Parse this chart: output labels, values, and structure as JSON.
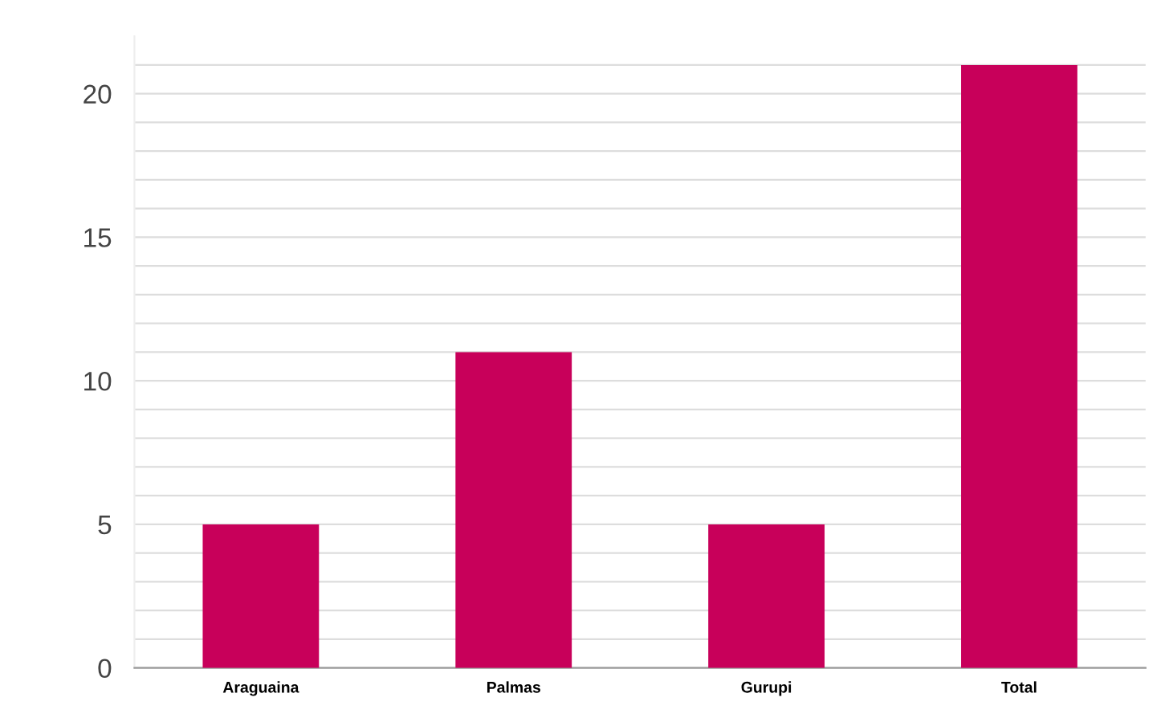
{
  "chart_data": {
    "type": "bar",
    "categories": [
      "Araguaina",
      "Palmas",
      "Gurupi",
      "Total"
    ],
    "values": [
      5,
      11,
      5,
      21
    ],
    "color": "#c8005a",
    "ylim": [
      0,
      22
    ],
    "yticks": [
      0,
      {
        "value": 1,
        "label": null
      },
      {
        "value": 2,
        "label": null
      },
      {
        "value": 3,
        "label": null
      },
      {
        "value": 4,
        "label": null
      },
      5,
      {
        "value": 6,
        "label": null
      },
      {
        "value": 7,
        "label": null
      },
      {
        "value": 8,
        "label": null
      },
      {
        "value": 9,
        "label": null
      },
      10,
      {
        "value": 11,
        "label": null
      },
      {
        "value": 12,
        "label": null
      },
      {
        "value": 13,
        "label": null
      },
      {
        "value": 14,
        "label": null
      },
      15,
      {
        "value": 16,
        "label": null
      },
      {
        "value": 17,
        "label": null
      },
      {
        "value": 18,
        "label": null
      },
      {
        "value": 19,
        "label": null
      },
      20,
      {
        "value": 21,
        "label": null
      }
    ],
    "grid": "y"
  }
}
